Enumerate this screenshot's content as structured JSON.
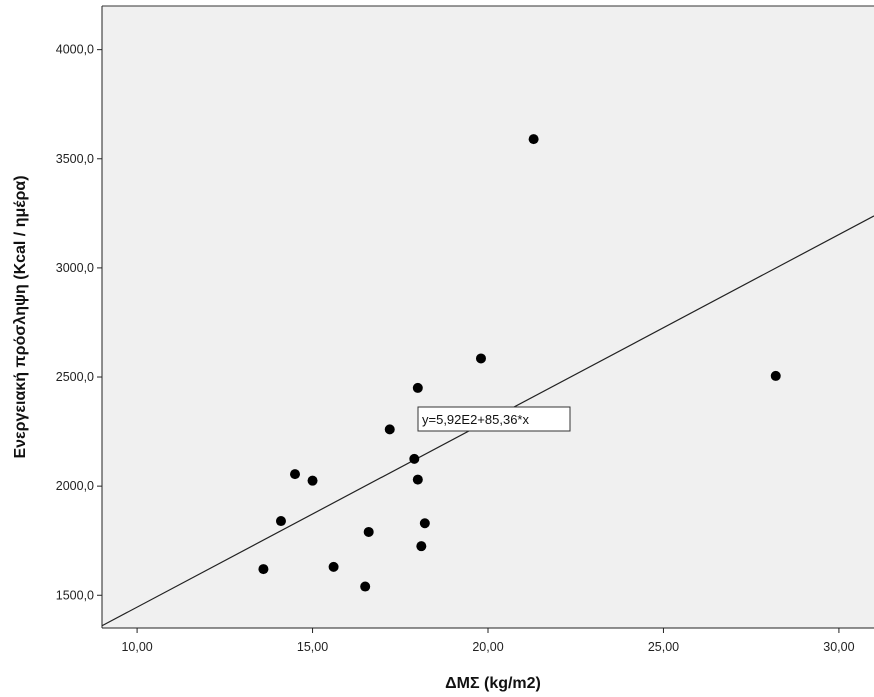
{
  "chart_data": {
    "type": "scatter",
    "xlabel": "ΔΜΣ  (kg/m2)",
    "ylabel": "Ενεργειακή πρόσληψη (Kcal / ημέρα)",
    "xlim": [
      9,
      31
    ],
    "ylim": [
      1350,
      4200
    ],
    "x_ticks": [
      {
        "value": 10,
        "label": "10,00"
      },
      {
        "value": 15,
        "label": "15,00"
      },
      {
        "value": 20,
        "label": "20,00"
      },
      {
        "value": 25,
        "label": "25,00"
      },
      {
        "value": 30,
        "label": "30,00"
      }
    ],
    "y_ticks": [
      {
        "value": 1500,
        "label": "1500,0"
      },
      {
        "value": 2000,
        "label": "2000,0"
      },
      {
        "value": 2500,
        "label": "2500,0"
      },
      {
        "value": 3000,
        "label": "3000,0"
      },
      {
        "value": 3500,
        "label": "3500,0"
      },
      {
        "value": 4000,
        "label": "4000,0"
      }
    ],
    "grid": false,
    "points": [
      {
        "x": 13.6,
        "y": 1620
      },
      {
        "x": 14.1,
        "y": 1840
      },
      {
        "x": 14.5,
        "y": 2055
      },
      {
        "x": 15.0,
        "y": 2025
      },
      {
        "x": 15.6,
        "y": 1630
      },
      {
        "x": 16.5,
        "y": 1540
      },
      {
        "x": 16.6,
        "y": 1790
      },
      {
        "x": 17.2,
        "y": 2260
      },
      {
        "x": 17.9,
        "y": 2125
      },
      {
        "x": 18.0,
        "y": 2030
      },
      {
        "x": 18.0,
        "y": 2450
      },
      {
        "x": 18.1,
        "y": 1725
      },
      {
        "x": 18.2,
        "y": 1830
      },
      {
        "x": 19.8,
        "y": 2585
      },
      {
        "x": 21.3,
        "y": 3590
      },
      {
        "x": 28.2,
        "y": 2505
      }
    ],
    "fit_line": {
      "intercept": 592,
      "slope": 85.36
    },
    "annotation": "y=5,92E2+85,36*x",
    "colors": {
      "plot_background": "#f0f0f0",
      "points": "#000000",
      "line": "#222222"
    }
  }
}
